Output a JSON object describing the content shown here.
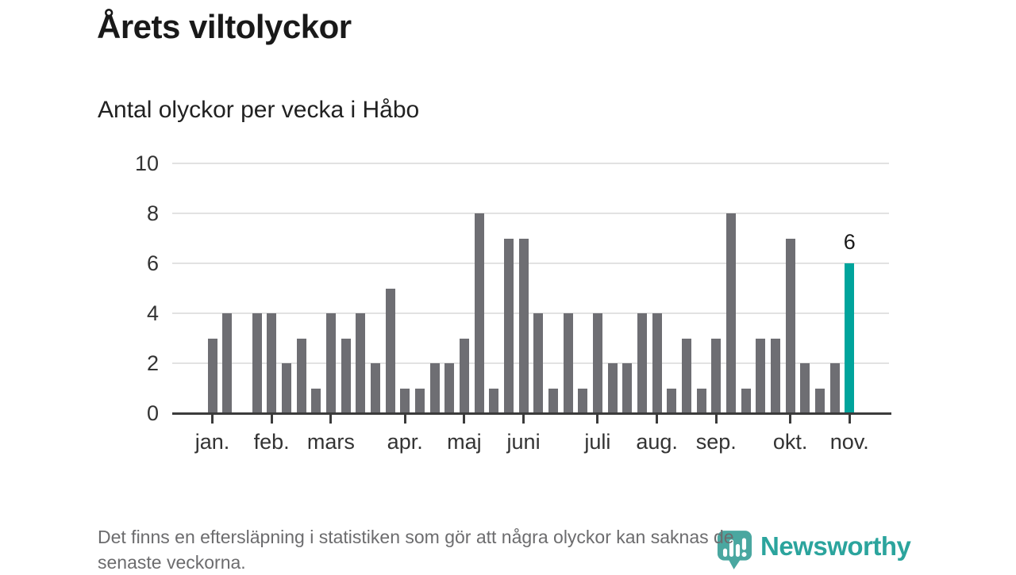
{
  "header": {
    "title": "Årets viltolyckor",
    "subtitle": "Antal olyckor per vecka i Håbo"
  },
  "chart_data": {
    "type": "bar",
    "title": "Årets viltolyckor",
    "subtitle": "Antal olyckor per vecka i Håbo",
    "x_unit": "vecka",
    "values": [
      3,
      4,
      0,
      4,
      4,
      2,
      3,
      1,
      4,
      3,
      4,
      2,
      5,
      1,
      1,
      2,
      2,
      3,
      8,
      1,
      7,
      7,
      4,
      1,
      4,
      1,
      4,
      2,
      2,
      4,
      4,
      1,
      3,
      1,
      3,
      8,
      1,
      3,
      3,
      7,
      2,
      1,
      2,
      6
    ],
    "month_ticks": [
      {
        "label": "jan.",
        "bar": 0
      },
      {
        "label": "feb.",
        "bar": 4
      },
      {
        "label": "mars",
        "bar": 8
      },
      {
        "label": "apr.",
        "bar": 13
      },
      {
        "label": "maj",
        "bar": 17
      },
      {
        "label": "juni",
        "bar": 21
      },
      {
        "label": "juli",
        "bar": 26
      },
      {
        "label": "aug.",
        "bar": 30
      },
      {
        "label": "sep.",
        "bar": 34
      },
      {
        "label": "okt.",
        "bar": 39
      },
      {
        "label": "nov.",
        "bar": 43
      }
    ],
    "yticks": [
      0,
      2,
      4,
      6,
      8,
      10
    ],
    "ylim": [
      0,
      10
    ],
    "grid": true,
    "legend": "none",
    "bar_color": "#6e6e73",
    "highlight_color": "#00a49c",
    "highlight": {
      "index": 43,
      "label": "6"
    }
  },
  "footer": {
    "lines": [
      "Det finns en eftersläpning i statistiken som gör att några olyckor kan saknas de",
      "senaste veckorna."
    ]
  },
  "logo": {
    "text": "Newsworthy",
    "text_color": "#2ba49d",
    "pin_color": "#4aa7a0"
  }
}
